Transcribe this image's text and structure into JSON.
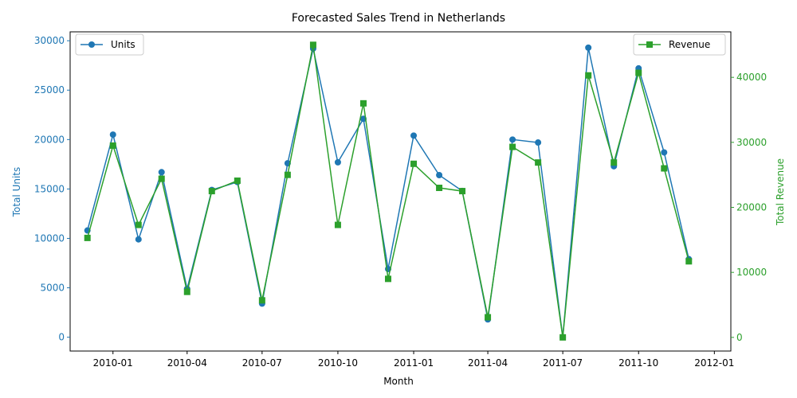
{
  "chart_data": {
    "type": "line",
    "title": "Forecasted Sales Trend in Netherlands",
    "xlabel": "Month",
    "y_left_label": "Total Units",
    "y_right_label": "Total Revenue",
    "x_ticks": [
      "2010-01",
      "2010-04",
      "2010-07",
      "2010-10",
      "2011-01",
      "2011-04",
      "2011-07",
      "2011-10",
      "2012-01"
    ],
    "y_left_ticks": [
      "0",
      "5000",
      "10000",
      "15000",
      "20000",
      "25000",
      "30000"
    ],
    "y_right_ticks": [
      "0",
      "10000",
      "20000",
      "30000",
      "40000"
    ],
    "x_range": [
      "2009-11-10",
      "2012-01-21"
    ],
    "y_left_range": [
      -1400,
      30900
    ],
    "y_right_range": [
      -2100,
      47000
    ],
    "grid": false,
    "x": [
      "2009-12-01",
      "2010-01-01",
      "2010-02-01",
      "2010-03-01",
      "2010-04-01",
      "2010-05-01",
      "2010-06-01",
      "2010-07-01",
      "2010-08-01",
      "2010-09-01",
      "2010-10-01",
      "2010-11-01",
      "2010-12-01",
      "2011-01-01",
      "2011-02-01",
      "2011-03-01",
      "2011-04-01",
      "2011-05-01",
      "2011-06-01",
      "2011-07-01",
      "2011-08-01",
      "2011-09-01",
      "2011-10-01",
      "2011-11-01",
      "2011-12-01"
    ],
    "series": [
      {
        "name": "Units",
        "axis": "left",
        "color": "#1f77b4",
        "marker": "circle",
        "legend_position": "upper-left",
        "values": [
          10800,
          20500,
          9900,
          16700,
          4900,
          14900,
          15700,
          3400,
          17600,
          29200,
          17700,
          22100,
          6900,
          20400,
          16400,
          14800,
          1800,
          20000,
          19700,
          0,
          29300,
          17300,
          27200,
          18700,
          7900
        ]
      },
      {
        "name": "Revenue",
        "axis": "right",
        "color": "#2ca02c",
        "marker": "square",
        "legend_position": "upper-right",
        "values": [
          15300,
          29500,
          17300,
          24400,
          7000,
          22500,
          24100,
          5700,
          25000,
          45000,
          17300,
          36000,
          9000,
          26700,
          23000,
          22500,
          3100,
          29300,
          26900,
          0,
          40300,
          26900,
          40700,
          26000,
          11700
        ]
      }
    ]
  }
}
